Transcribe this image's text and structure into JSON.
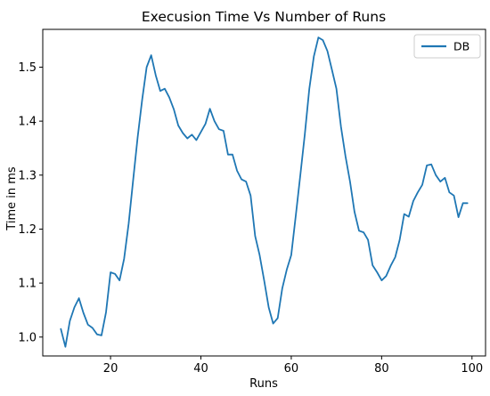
{
  "chart_data": {
    "type": "line",
    "title": "Execusion Time Vs Number of Runs",
    "xlabel": "Runs",
    "ylabel": "Time in ms",
    "xlim": [
      5,
      103
    ],
    "ylim": [
      0.965,
      1.57
    ],
    "xticks": [
      {
        "value": 20,
        "label": "20"
      },
      {
        "value": 40,
        "label": "40"
      },
      {
        "value": 60,
        "label": "60"
      },
      {
        "value": 80,
        "label": "80"
      },
      {
        "value": 100,
        "label": "100"
      }
    ],
    "yticks": [
      {
        "value": 1.0,
        "label": "1.0"
      },
      {
        "value": 1.1,
        "label": "1.1"
      },
      {
        "value": 1.2,
        "label": "1.2"
      },
      {
        "value": 1.3,
        "label": "1.3"
      },
      {
        "value": 1.4,
        "label": "1.4"
      },
      {
        "value": 1.5,
        "label": "1.5"
      }
    ],
    "grid": false,
    "legend_position": "top-right",
    "series": [
      {
        "name": "DB",
        "color": "#1f77b4",
        "x": [
          9,
          10,
          11,
          12,
          13,
          14,
          15,
          16,
          17,
          18,
          19,
          20,
          21,
          22,
          23,
          24,
          25,
          26,
          27,
          28,
          29,
          30,
          31,
          32,
          33,
          34,
          35,
          36,
          37,
          38,
          39,
          40,
          41,
          42,
          43,
          44,
          45,
          46,
          47,
          48,
          49,
          50,
          51,
          52,
          53,
          54,
          55,
          56,
          57,
          58,
          59,
          60,
          61,
          62,
          63,
          64,
          65,
          66,
          67,
          68,
          69,
          70,
          71,
          72,
          73,
          74,
          75,
          76,
          77,
          78,
          79,
          80,
          81,
          82,
          83,
          84,
          85,
          86,
          87,
          88,
          89,
          90,
          91,
          92,
          93,
          94,
          95,
          96,
          97,
          98,
          99
        ],
        "values": [
          1.015,
          0.982,
          1.03,
          1.055,
          1.072,
          1.045,
          1.023,
          1.017,
          1.005,
          1.003,
          1.046,
          1.12,
          1.117,
          1.105,
          1.145,
          1.21,
          1.29,
          1.37,
          1.44,
          1.5,
          1.522,
          1.485,
          1.456,
          1.46,
          1.444,
          1.422,
          1.392,
          1.378,
          1.368,
          1.375,
          1.365,
          1.38,
          1.395,
          1.423,
          1.4,
          1.385,
          1.382,
          1.338,
          1.338,
          1.308,
          1.292,
          1.288,
          1.262,
          1.187,
          1.152,
          1.105,
          1.055,
          1.025,
          1.035,
          1.09,
          1.125,
          1.152,
          1.225,
          1.3,
          1.375,
          1.46,
          1.52,
          1.555,
          1.55,
          1.53,
          1.495,
          1.46,
          1.39,
          1.335,
          1.288,
          1.232,
          1.197,
          1.194,
          1.18,
          1.133,
          1.12,
          1.105,
          1.113,
          1.132,
          1.148,
          1.18,
          1.228,
          1.223,
          1.252,
          1.268,
          1.282,
          1.318,
          1.32,
          1.3,
          1.288,
          1.295,
          1.268,
          1.262,
          1.222,
          1.248,
          1.248
        ]
      }
    ]
  }
}
